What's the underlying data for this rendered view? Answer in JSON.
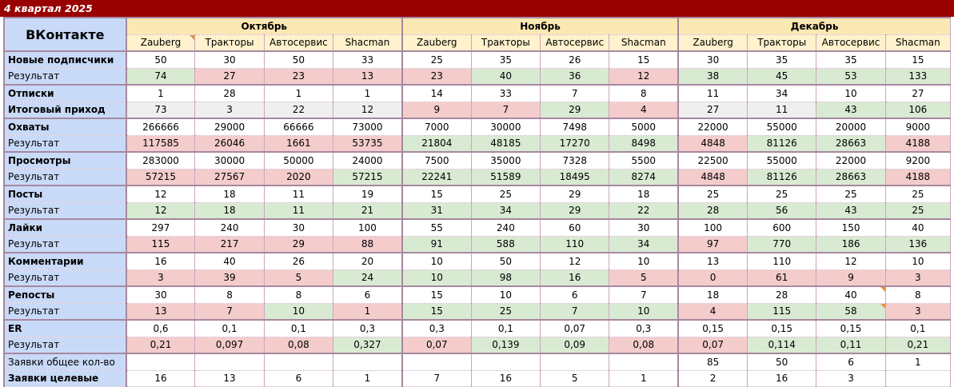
{
  "title": "4 квартал 2025",
  "brand": "ВКонтакте",
  "months": [
    "Октябрь",
    "Ноябрь",
    "Декабрь"
  ],
  "companies": [
    "Zauberg",
    "Тракторы",
    "Автосервис",
    "Shacman"
  ],
  "colors": {
    "title_bar": "#990000",
    "label_column": "#c9daf8",
    "month_header": "#fce8b2",
    "company_header": "#fff2cc",
    "good": "#d9ead3",
    "bad": "#f4cccc",
    "neutral": "#efefef",
    "comment_marker": "#e69138"
  },
  "rows": [
    {
      "label": "Новые подписчики",
      "type": "top",
      "group_start": true,
      "values": [
        "50",
        "30",
        "50",
        "33",
        "25",
        "35",
        "26",
        "15",
        "30",
        "35",
        "35",
        "15"
      ],
      "statuses": [
        "white",
        "white",
        "white",
        "white",
        "white",
        "white",
        "white",
        "white",
        "white",
        "white",
        "white",
        "white"
      ]
    },
    {
      "label": "Результат",
      "type": "result",
      "values": [
        "74",
        "27",
        "23",
        "13",
        "23",
        "40",
        "36",
        "12",
        "38",
        "45",
        "53",
        "133"
      ],
      "statuses": [
        "green",
        "red",
        "red",
        "red",
        "red",
        "green",
        "green",
        "red",
        "green",
        "green",
        "green",
        "green"
      ]
    },
    {
      "label": "Отписки",
      "type": "top",
      "group_start": true,
      "values": [
        "1",
        "28",
        "1",
        "1",
        "14",
        "33",
        "7",
        "8",
        "11",
        "34",
        "10",
        "27"
      ],
      "statuses": [
        "white",
        "white",
        "white",
        "white",
        "white",
        "white",
        "white",
        "white",
        "white",
        "white",
        "white",
        "white"
      ]
    },
    {
      "label": "Итоговый приход",
      "type": "top",
      "values": [
        "73",
        "3",
        "22",
        "12",
        "9",
        "7",
        "29",
        "4",
        "27",
        "11",
        "43",
        "106"
      ],
      "statuses": [
        "grey",
        "grey",
        "grey",
        "grey",
        "red",
        "red",
        "green",
        "red",
        "grey",
        "grey",
        "green",
        "green"
      ]
    },
    {
      "label": "Охваты",
      "type": "top",
      "group_start": true,
      "values": [
        "266666",
        "29000",
        "66666",
        "73000",
        "7000",
        "30000",
        "7498",
        "5000",
        "22000",
        "55000",
        "20000",
        "9000"
      ],
      "statuses": [
        "white",
        "white",
        "white",
        "white",
        "white",
        "white",
        "white",
        "white",
        "white",
        "white",
        "white",
        "white"
      ]
    },
    {
      "label": "Результат",
      "type": "result",
      "values": [
        "117585",
        "26046",
        "1661",
        "53735",
        "21804",
        "48185",
        "17270",
        "8498",
        "4848",
        "81126",
        "28663",
        "4188"
      ],
      "statuses": [
        "red",
        "red",
        "red",
        "red",
        "green",
        "green",
        "green",
        "green",
        "red",
        "green",
        "green",
        "red"
      ]
    },
    {
      "label": "Просмотры",
      "type": "top",
      "group_start": true,
      "values": [
        "283000",
        "30000",
        "50000",
        "24000",
        "7500",
        "35000",
        "7328",
        "5500",
        "22500",
        "55000",
        "22000",
        "9200"
      ],
      "statuses": [
        "white",
        "white",
        "white",
        "white",
        "white",
        "white",
        "white",
        "white",
        "white",
        "white",
        "white",
        "white"
      ]
    },
    {
      "label": "Результат",
      "type": "result",
      "values": [
        "57215",
        "27567",
        "2020",
        "57215",
        "22241",
        "51589",
        "18495",
        "8274",
        "4848",
        "81126",
        "28663",
        "4188"
      ],
      "statuses": [
        "red",
        "red",
        "red",
        "green",
        "green",
        "green",
        "green",
        "green",
        "red",
        "green",
        "green",
        "red"
      ]
    },
    {
      "label": "Посты",
      "type": "top",
      "group_start": true,
      "values": [
        "12",
        "18",
        "11",
        "19",
        "15",
        "25",
        "29",
        "18",
        "25",
        "25",
        "25",
        "25"
      ],
      "statuses": [
        "white",
        "white",
        "white",
        "white",
        "white",
        "white",
        "white",
        "white",
        "white",
        "white",
        "white",
        "white"
      ]
    },
    {
      "label": "Результат",
      "type": "result",
      "values": [
        "12",
        "18",
        "11",
        "21",
        "31",
        "34",
        "29",
        "22",
        "28",
        "56",
        "43",
        "25"
      ],
      "statuses": [
        "green",
        "green",
        "green",
        "green",
        "green",
        "green",
        "green",
        "green",
        "green",
        "green",
        "green",
        "green"
      ]
    },
    {
      "label": "Лайки",
      "type": "top",
      "group_start": true,
      "values": [
        "297",
        "240",
        "30",
        "100",
        "55",
        "240",
        "60",
        "30",
        "100",
        "600",
        "150",
        "40"
      ],
      "statuses": [
        "white",
        "white",
        "white",
        "white",
        "white",
        "white",
        "white",
        "white",
        "white",
        "white",
        "white",
        "white"
      ]
    },
    {
      "label": "Результат",
      "type": "result",
      "values": [
        "115",
        "217",
        "29",
        "88",
        "91",
        "588",
        "110",
        "34",
        "97",
        "770",
        "186",
        "136"
      ],
      "statuses": [
        "red",
        "red",
        "red",
        "red",
        "green",
        "green",
        "green",
        "green",
        "red",
        "green",
        "green",
        "green"
      ]
    },
    {
      "label": "Комментарии",
      "type": "top",
      "group_start": true,
      "values": [
        "16",
        "40",
        "26",
        "20",
        "10",
        "50",
        "12",
        "10",
        "13",
        "110",
        "12",
        "10"
      ],
      "statuses": [
        "white",
        "white",
        "white",
        "white",
        "white",
        "white",
        "white",
        "white",
        "white",
        "white",
        "white",
        "white"
      ]
    },
    {
      "label": "Результат",
      "type": "result",
      "values": [
        "3",
        "39",
        "5",
        "24",
        "10",
        "98",
        "16",
        "5",
        "0",
        "61",
        "9",
        "3"
      ],
      "statuses": [
        "red",
        "red",
        "red",
        "green",
        "green",
        "green",
        "green",
        "red",
        "red",
        "red",
        "red",
        "red"
      ]
    },
    {
      "label": "Репосты",
      "type": "top",
      "group_start": true,
      "values": [
        "30",
        "8",
        "8",
        "6",
        "15",
        "10",
        "6",
        "7",
        "18",
        "28",
        "40",
        "8"
      ],
      "statuses": [
        "white",
        "white",
        "white",
        "white",
        "white",
        "white",
        "white",
        "white",
        "white",
        "white",
        "white",
        "white"
      ]
    },
    {
      "label": "Результат",
      "type": "result",
      "values": [
        "13",
        "7",
        "10",
        "1",
        "15",
        "25",
        "7",
        "10",
        "4",
        "115",
        "58",
        "3"
      ],
      "statuses": [
        "red",
        "red",
        "green",
        "red",
        "green",
        "green",
        "green",
        "green",
        "red",
        "green",
        "green",
        "red"
      ]
    },
    {
      "label": "ER",
      "type": "top",
      "group_start": true,
      "values": [
        "0,6",
        "0,1",
        "0,1",
        "0,3",
        "0,3",
        "0,1",
        "0,07",
        "0,3",
        "0,15",
        "0,15",
        "0,15",
        "0,1"
      ],
      "statuses": [
        "white",
        "white",
        "white",
        "white",
        "white",
        "white",
        "white",
        "white",
        "white",
        "white",
        "white",
        "white"
      ]
    },
    {
      "label": "Результат",
      "type": "result",
      "values": [
        "0,21",
        "0,097",
        "0,08",
        "0,327",
        "0,07",
        "0,139",
        "0,09",
        "0,08",
        "0,07",
        "0,114",
        "0,11",
        "0,21"
      ],
      "statuses": [
        "red",
        "red",
        "red",
        "green",
        "red",
        "green",
        "green",
        "red",
        "red",
        "green",
        "green",
        "green"
      ]
    },
    {
      "label": "Заявки общее кол-во",
      "type": "result",
      "group_start": true,
      "values": [
        "",
        "",
        "",
        "",
        "",
        "",
        "",
        "",
        "85",
        "50",
        "6",
        "1"
      ],
      "statuses": [
        "white",
        "white",
        "white",
        "white",
        "white",
        "white",
        "white",
        "white",
        "white",
        "white",
        "white",
        "white"
      ]
    },
    {
      "label": "Заявки целевые",
      "type": "top",
      "values": [
        "16",
        "13",
        "6",
        "1",
        "7",
        "16",
        "5",
        "1",
        "2",
        "16",
        "3",
        ""
      ],
      "statuses": [
        "white",
        "white",
        "white",
        "white",
        "white",
        "white",
        "white",
        "white",
        "white",
        "white",
        "white",
        "white"
      ]
    }
  ]
}
